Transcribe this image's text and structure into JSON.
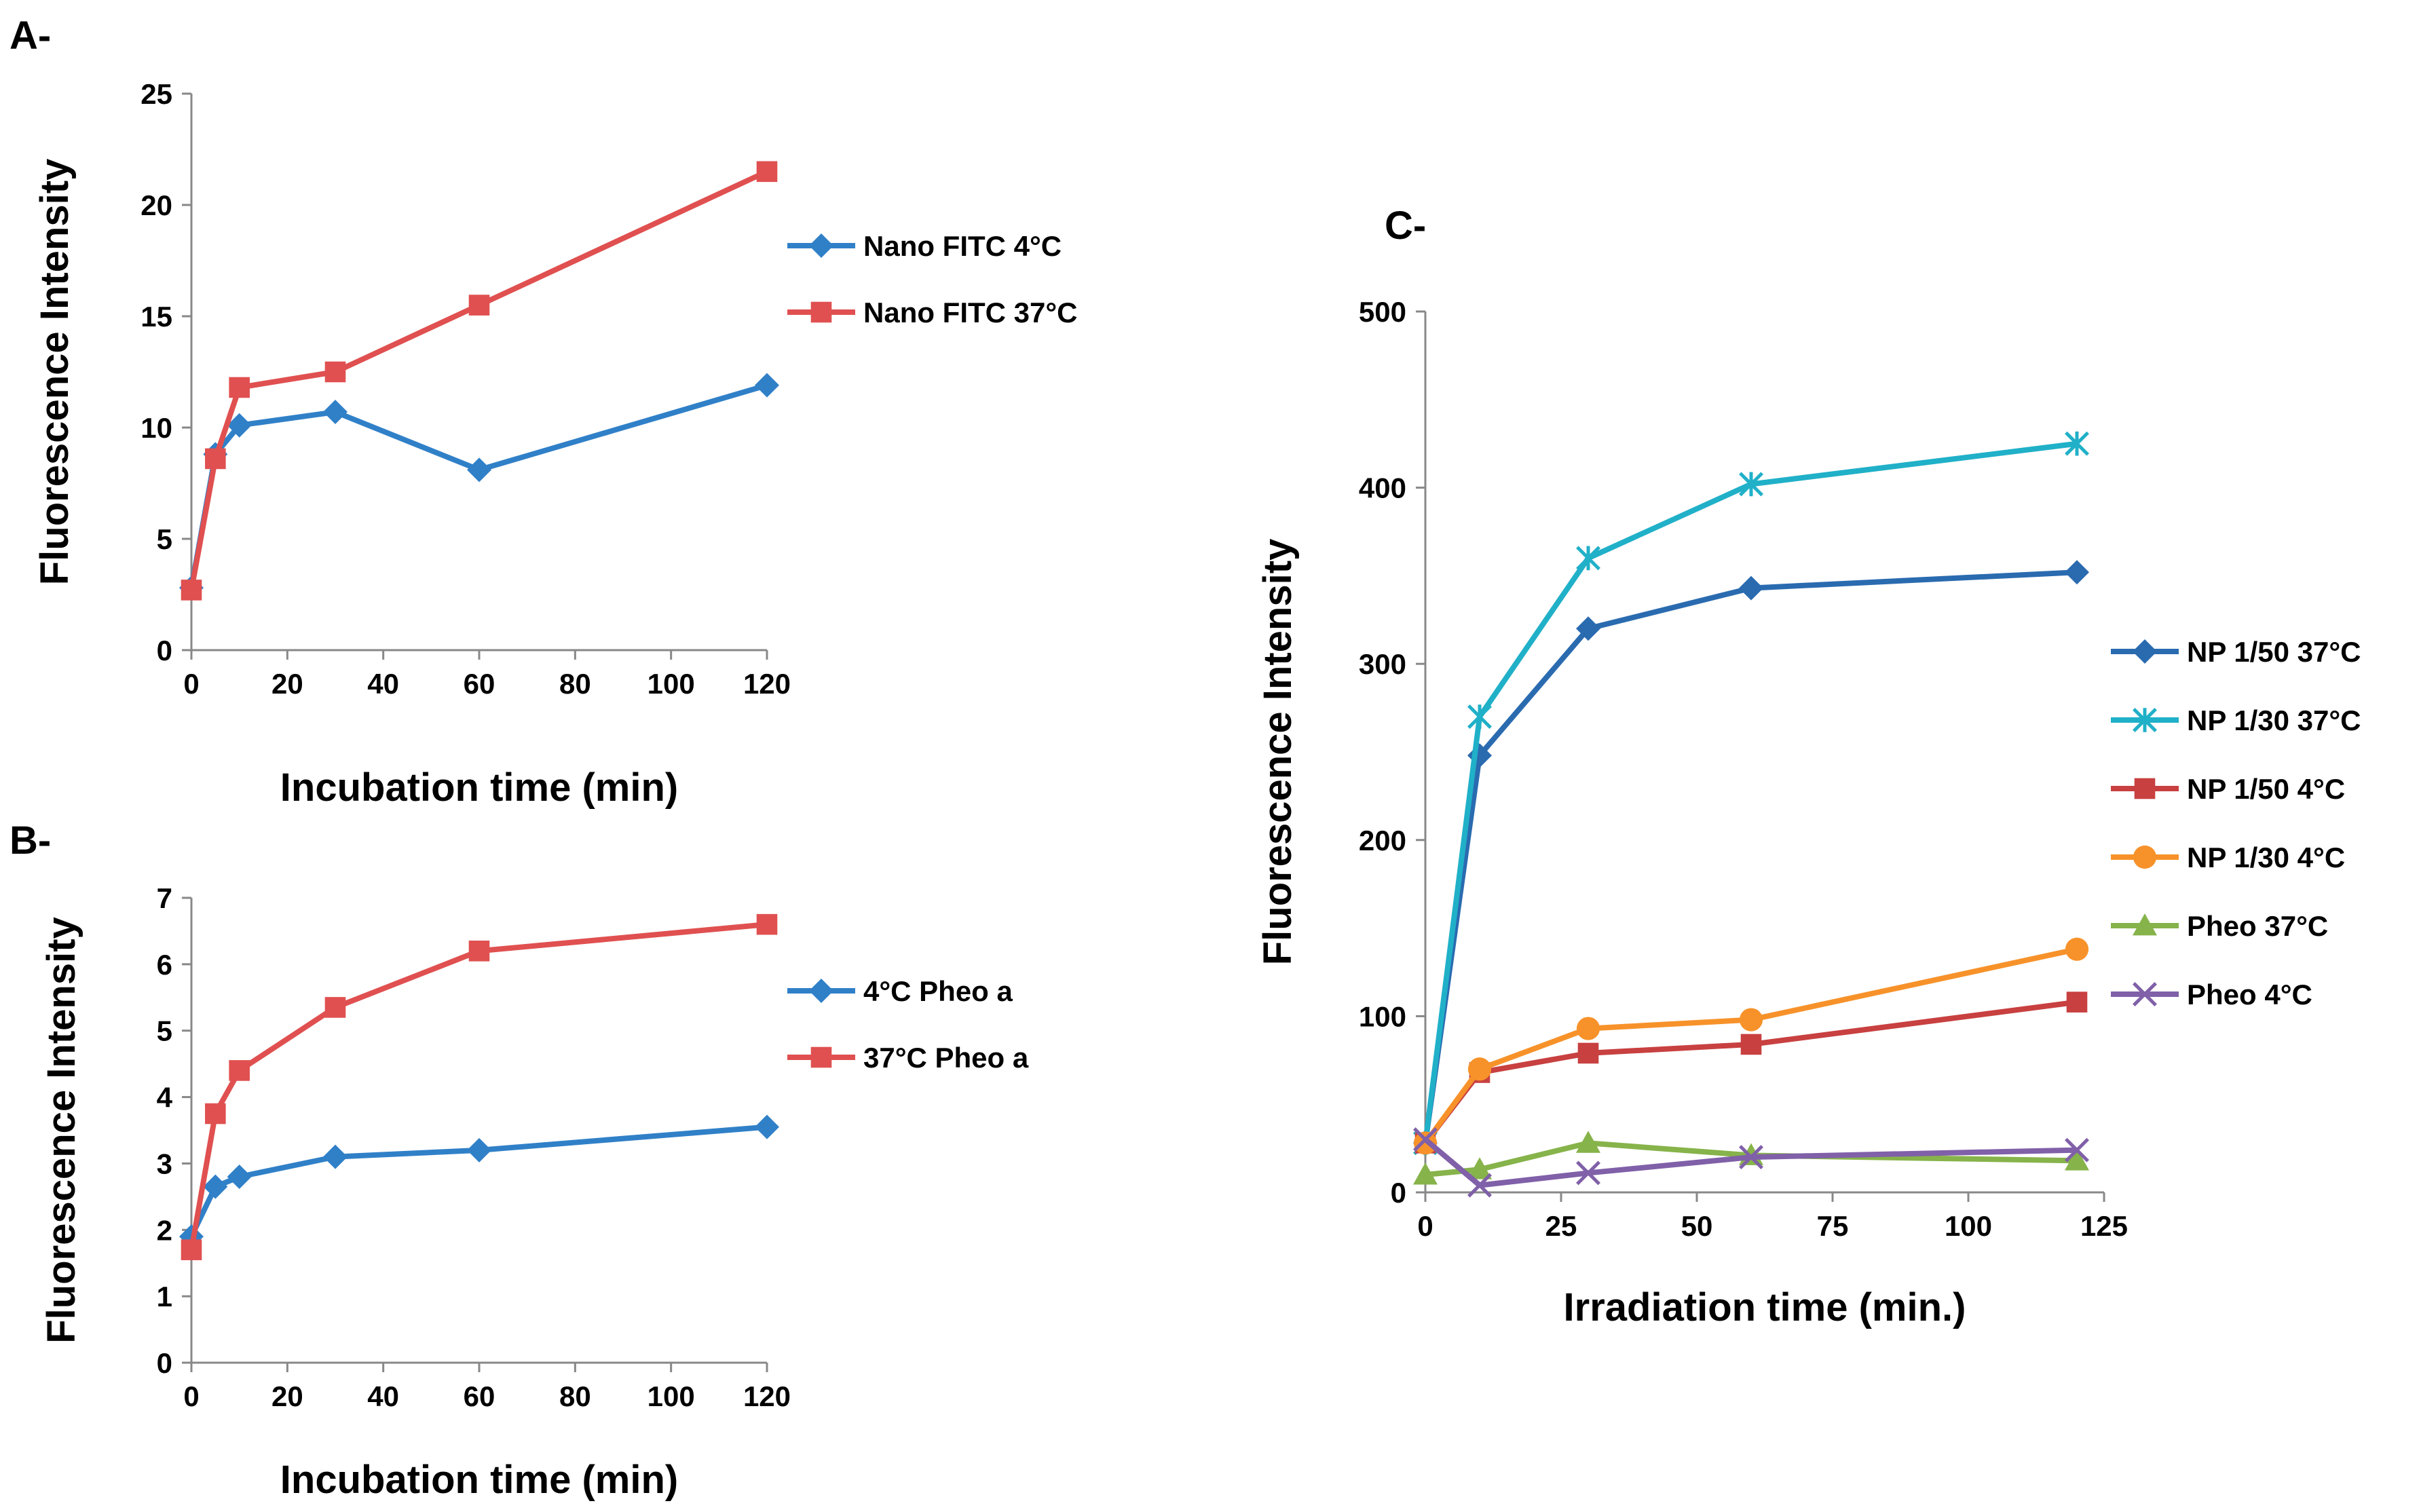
{
  "chart_data": [
    {
      "id": "A",
      "type": "line",
      "panel_label": "A-",
      "xlabel": "Incubation time (min)",
      "ylabel": "Fluorescence Intensity",
      "xlim": [
        0,
        120
      ],
      "ylim": [
        0,
        25
      ],
      "xticks": [
        0,
        20,
        40,
        60,
        80,
        100,
        120
      ],
      "yticks": [
        0,
        5,
        10,
        15,
        20,
        25
      ],
      "x": [
        0,
        5,
        10,
        30,
        60,
        120
      ],
      "legend_position": "right",
      "series": [
        {
          "name": "Nano FITC 4°C",
          "color": "#3080C8",
          "marker": "diamond",
          "values": [
            2.8,
            8.8,
            10.1,
            10.7,
            8.1,
            11.9
          ]
        },
        {
          "name": "Nano FITC 37°C",
          "color": "#E05050",
          "marker": "square",
          "values": [
            2.7,
            8.6,
            11.8,
            12.5,
            15.5,
            21.5
          ]
        }
      ]
    },
    {
      "id": "B",
      "type": "line",
      "panel_label": "B-",
      "xlabel": "Incubation time (min)",
      "ylabel": "Fluorescence Intensity",
      "xlim": [
        0,
        120
      ],
      "ylim": [
        0,
        7
      ],
      "xticks": [
        0,
        20,
        40,
        60,
        80,
        100,
        120
      ],
      "yticks": [
        0,
        1,
        2,
        3,
        4,
        5,
        6,
        7
      ],
      "x": [
        0,
        5,
        10,
        30,
        60,
        120
      ],
      "legend_position": "right",
      "series": [
        {
          "name": "4°C Pheo a",
          "color": "#3080C8",
          "marker": "diamond",
          "values": [
            1.9,
            2.65,
            2.8,
            3.1,
            3.2,
            3.55
          ]
        },
        {
          "name": "37°C Pheo a",
          "color": "#E05050",
          "marker": "square",
          "values": [
            1.7,
            3.75,
            4.4,
            5.35,
            6.2,
            6.6
          ]
        }
      ]
    },
    {
      "id": "C",
      "type": "line",
      "panel_label": "C-",
      "xlabel": "Irradiation time (min.)",
      "ylabel": "Fluorescence Intensity",
      "xlim": [
        0,
        125
      ],
      "ylim": [
        0,
        500
      ],
      "xticks": [
        0,
        25,
        50,
        75,
        100,
        125
      ],
      "yticks": [
        0,
        100,
        200,
        300,
        400,
        500
      ],
      "x": [
        0,
        10,
        30,
        60,
        120
      ],
      "legend_position": "right",
      "series": [
        {
          "name": "NP 1/50 37°C",
          "color": "#2A6BB0",
          "marker": "diamond",
          "values": [
            28,
            248,
            320,
            343,
            352
          ]
        },
        {
          "name": "NP 1/30 37°C",
          "color": "#20B0C8",
          "marker": "star",
          "values": [
            28,
            270,
            360,
            402,
            425
          ]
        },
        {
          "name": "NP 1/50 4°C",
          "color": "#C84040",
          "marker": "square",
          "values": [
            28,
            68,
            79,
            84,
            108
          ]
        },
        {
          "name": "NP 1/30 4°C",
          "color": "#F7922A",
          "marker": "circle",
          "values": [
            28,
            70,
            93,
            98,
            138
          ]
        },
        {
          "name": "Pheo 37°C",
          "color": "#86B34A",
          "marker": "triangle",
          "values": [
            10,
            13,
            28,
            21,
            18
          ]
        },
        {
          "name": "Pheo 4°C",
          "color": "#8060A8",
          "marker": "x",
          "values": [
            30,
            4,
            11,
            20,
            24
          ]
        }
      ]
    }
  ]
}
